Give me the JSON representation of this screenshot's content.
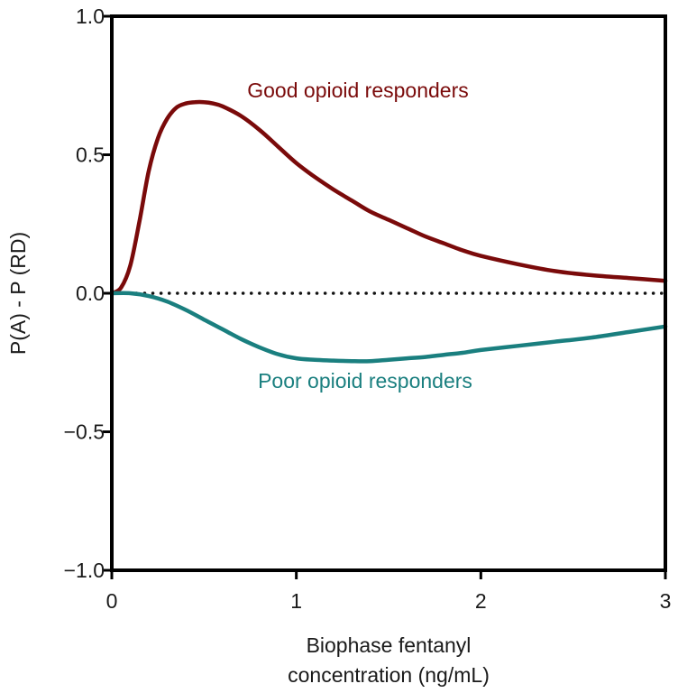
{
  "chart_data": {
    "type": "line",
    "xlabel_lines": [
      "Biophase fentanyl",
      "concentration (ng/mL)"
    ],
    "ylabel": "P(A) - P (RD)",
    "xlim": [
      0,
      3
    ],
    "ylim": [
      -1.0,
      1.0
    ],
    "x_ticks": [
      0,
      1,
      2,
      3
    ],
    "x_tick_labels": [
      "0",
      "1",
      "2",
      "3"
    ],
    "y_ticks": [
      1.0,
      0.5,
      0.0,
      -0.5,
      -1.0
    ],
    "y_tick_labels": [
      "1.0",
      "0.5",
      "0.0",
      "−0.5",
      "−1.0"
    ],
    "grid": false,
    "reference_line": {
      "y": 0,
      "style": "dotted"
    },
    "series": [
      {
        "name": "Good opioid responders",
        "color": "#7a0a0a",
        "x": [
          0,
          0.05,
          0.1,
          0.15,
          0.2,
          0.25,
          0.3,
          0.35,
          0.4,
          0.45,
          0.5,
          0.55,
          0.6,
          0.7,
          0.8,
          0.9,
          1.0,
          1.1,
          1.2,
          1.3,
          1.4,
          1.5,
          1.6,
          1.7,
          1.8,
          1.9,
          2.0,
          2.2,
          2.4,
          2.6,
          2.8,
          3.0
        ],
        "values": [
          0,
          0.02,
          0.1,
          0.26,
          0.44,
          0.56,
          0.63,
          0.67,
          0.685,
          0.69,
          0.69,
          0.685,
          0.675,
          0.64,
          0.59,
          0.53,
          0.47,
          0.42,
          0.375,
          0.335,
          0.295,
          0.265,
          0.235,
          0.205,
          0.18,
          0.155,
          0.135,
          0.105,
          0.08,
          0.065,
          0.055,
          0.045
        ]
      },
      {
        "name": "Poor opioid responders",
        "color": "#1a7f7f",
        "x": [
          0,
          0.1,
          0.2,
          0.3,
          0.4,
          0.5,
          0.6,
          0.7,
          0.8,
          0.9,
          1.0,
          1.1,
          1.2,
          1.3,
          1.4,
          1.5,
          1.6,
          1.7,
          1.8,
          1.9,
          2.0,
          2.2,
          2.4,
          2.6,
          2.8,
          3.0
        ],
        "values": [
          0,
          0,
          -0.01,
          -0.03,
          -0.06,
          -0.095,
          -0.13,
          -0.165,
          -0.195,
          -0.22,
          -0.235,
          -0.24,
          -0.243,
          -0.245,
          -0.245,
          -0.24,
          -0.235,
          -0.23,
          -0.222,
          -0.215,
          -0.205,
          -0.19,
          -0.175,
          -0.16,
          -0.14,
          -0.12
        ]
      }
    ]
  }
}
